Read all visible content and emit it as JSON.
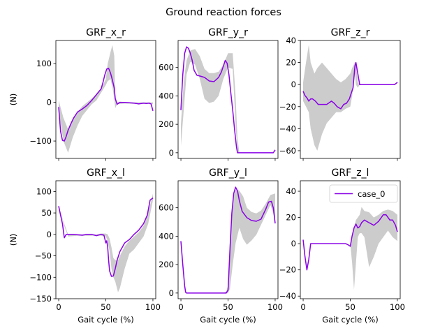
{
  "figure_title": "Ground reaction forces",
  "ylabel": "(N)",
  "xlabel": "Gait cycle (%)",
  "colors": {
    "line": "#8a00e6",
    "band": "#cccccc"
  },
  "legend": {
    "label": "case_0",
    "location": "upper right"
  },
  "chart_data": [
    {
      "type": "line",
      "title": "GRF_x_r",
      "xlim": [
        -3,
        103
      ],
      "ylim": [
        -145,
        160
      ],
      "yticks": [
        -100,
        0,
        100
      ],
      "yticklabels": [
        "−100",
        "0",
        "100"
      ],
      "xticks": [
        0,
        50,
        100
      ],
      "show_xticklabels": false,
      "ylabel": "(N)",
      "xlabel": "",
      "series": [
        {
          "name": "case_0",
          "x": [
            0,
            2,
            4,
            6,
            8,
            10,
            13,
            16,
            20,
            25,
            30,
            35,
            40,
            45,
            47,
            49,
            51,
            53,
            55,
            57,
            59,
            60,
            62,
            65,
            70,
            75,
            80,
            85,
            90,
            93,
            96,
            98,
            100
          ],
          "y": [
            -12,
            -75,
            -98,
            -100,
            -88,
            -72,
            -55,
            -40,
            -25,
            -17,
            -8,
            5,
            20,
            35,
            52,
            72,
            86,
            88,
            76,
            58,
            37,
            10,
            -5,
            0,
            0,
            -1,
            -2,
            -4,
            -2,
            -3,
            -2,
            -4,
            -22
          ]
        }
      ],
      "band": {
        "x": [
          0,
          5,
          10,
          15,
          20,
          25,
          30,
          35,
          40,
          45,
          50,
          52,
          55,
          57,
          59,
          60,
          62,
          65,
          70,
          80,
          90,
          100
        ],
        "upper": [
          5,
          -40,
          -70,
          -40,
          -25,
          -10,
          0,
          10,
          20,
          35,
          60,
          100,
          130,
          148,
          120,
          10,
          0,
          2,
          1,
          0,
          0,
          0
        ],
        "lower": [
          -20,
          -100,
          -130,
          -90,
          -60,
          -35,
          -20,
          -5,
          5,
          25,
          45,
          55,
          60,
          40,
          10,
          -15,
          -5,
          -4,
          -3,
          -4,
          -4,
          -4
        ]
      }
    },
    {
      "type": "line",
      "title": "GRF_y_r",
      "xlim": [
        -3,
        103
      ],
      "ylim": [
        -40,
        790
      ],
      "yticks": [
        0,
        200,
        400,
        600
      ],
      "yticklabels": [
        "0",
        "200",
        "400",
        "600"
      ],
      "xticks": [
        0,
        50,
        100
      ],
      "show_xticklabels": false,
      "ylabel": "",
      "xlabel": "",
      "series": [
        {
          "name": "case_0",
          "x": [
            0,
            2,
            4,
            6,
            8,
            10,
            12,
            14,
            17,
            20,
            25,
            30,
            35,
            40,
            43,
            45,
            47,
            49,
            51,
            53,
            55,
            57,
            59,
            60,
            62,
            65,
            70,
            80,
            90,
            95,
            98,
            100
          ],
          "y": [
            300,
            550,
            700,
            745,
            735,
            700,
            650,
            580,
            545,
            540,
            530,
            505,
            500,
            530,
            570,
            610,
            650,
            630,
            550,
            420,
            300,
            160,
            40,
            0,
            0,
            0,
            0,
            0,
            0,
            0,
            0,
            20
          ]
        }
      ],
      "band": {
        "x": [
          0,
          3,
          6,
          10,
          15,
          20,
          25,
          30,
          35,
          40,
          45,
          50,
          55,
          58,
          60,
          62,
          65,
          70,
          80,
          90,
          100
        ],
        "upper": [
          200,
          500,
          650,
          720,
          730,
          680,
          590,
          560,
          560,
          570,
          620,
          700,
          700,
          400,
          100,
          0,
          0,
          0,
          0,
          0,
          0
        ],
        "lower": [
          50,
          300,
          550,
          640,
          620,
          520,
          380,
          350,
          360,
          400,
          520,
          600,
          590,
          200,
          0,
          0,
          0,
          0,
          0,
          0,
          0
        ]
      }
    },
    {
      "type": "line",
      "title": "GRF_z_r",
      "xlim": [
        -3,
        103
      ],
      "ylim": [
        -67,
        40
      ],
      "yticks": [
        -60,
        -40,
        -20,
        0,
        20,
        40
      ],
      "yticklabels": [
        "−60",
        "−40",
        "−20",
        "0",
        "20",
        "40"
      ],
      "xticks": [
        0,
        50,
        100
      ],
      "show_xticklabels": false,
      "ylabel": "",
      "xlabel": "",
      "series": [
        {
          "name": "case_0",
          "x": [
            0,
            2,
            4,
            6,
            8,
            10,
            13,
            16,
            20,
            25,
            30,
            33,
            36,
            40,
            43,
            46,
            49,
            51,
            53,
            55,
            56,
            58,
            60,
            65,
            70,
            80,
            90,
            95,
            97,
            100
          ],
          "y": [
            -6,
            -10,
            -12,
            -15,
            -13,
            -13,
            -15,
            -18,
            -18,
            -18,
            -15,
            -17,
            -20,
            -22,
            -18,
            -17,
            -13,
            -8,
            -3,
            17,
            20,
            10,
            0,
            0,
            0,
            0,
            0,
            0,
            0,
            2
          ]
        }
      ],
      "band": {
        "x": [
          0,
          3,
          6,
          8,
          12,
          15,
          20,
          25,
          30,
          35,
          40,
          45,
          50,
          52,
          55,
          56,
          58,
          60,
          70,
          80,
          90,
          100
        ],
        "upper": [
          2,
          20,
          36,
          20,
          10,
          15,
          20,
          15,
          10,
          5,
          2,
          5,
          10,
          15,
          20,
          20,
          2,
          0,
          0,
          0,
          0,
          0
        ],
        "lower": [
          -15,
          -20,
          -25,
          -40,
          -55,
          -60,
          -45,
          -35,
          -30,
          -25,
          -25,
          -22,
          -20,
          -10,
          10,
          0,
          -3,
          0,
          0,
          0,
          0,
          0
        ]
      }
    },
    {
      "type": "line",
      "title": "GRF_x_l",
      "xlim": [
        -3,
        103
      ],
      "ylim": [
        -150,
        125
      ],
      "yticks": [
        -150,
        -100,
        -50,
        0,
        50,
        100
      ],
      "yticklabels": [
        "−150",
        "−100",
        "−50",
        "0",
        "50",
        "100"
      ],
      "xticks": [
        0,
        50,
        100
      ],
      "show_xticklabels": true,
      "ylabel": "(N)",
      "xlabel": "Gait cycle (%)",
      "series": [
        {
          "name": "case_0",
          "x": [
            0,
            2,
            4,
            6,
            8,
            10,
            15,
            20,
            25,
            30,
            35,
            40,
            45,
            48,
            50,
            51,
            52,
            53,
            54,
            56,
            58,
            60,
            62,
            65,
            70,
            75,
            80,
            85,
            90,
            94,
            97,
            100
          ],
          "y": [
            66,
            45,
            25,
            -8,
            0,
            0,
            0,
            -1,
            -2,
            0,
            0,
            -3,
            0,
            -2,
            -20,
            -15,
            -30,
            -60,
            -85,
            -98,
            -97,
            -80,
            -60,
            -40,
            -20,
            -12,
            0,
            10,
            25,
            45,
            80,
            85
          ]
        }
      ],
      "band": {
        "x": [
          0,
          5,
          10,
          20,
          30,
          40,
          45,
          50,
          52,
          54,
          56,
          58,
          60,
          63,
          65,
          70,
          75,
          80,
          85,
          90,
          95,
          100
        ],
        "upper": [
          65,
          30,
          0,
          0,
          0,
          0,
          2,
          2,
          0,
          -10,
          -30,
          -55,
          -60,
          -60,
          -50,
          -28,
          -15,
          -5,
          5,
          20,
          50,
          95
        ],
        "lower": [
          65,
          25,
          -5,
          -3,
          -3,
          -3,
          -3,
          -5,
          -15,
          -40,
          -80,
          -100,
          -110,
          -135,
          -125,
          -80,
          -45,
          -35,
          -20,
          -5,
          25,
          80
        ]
      }
    },
    {
      "type": "line",
      "title": "GRF_y_l",
      "xlim": [
        -3,
        103
      ],
      "ylim": [
        -40,
        790
      ],
      "yticks": [
        0,
        200,
        400,
        600
      ],
      "yticklabels": [
        "0",
        "200",
        "400",
        "600"
      ],
      "xticks": [
        0,
        50,
        100
      ],
      "show_xticklabels": true,
      "ylabel": "",
      "xlabel": "Gait cycle (%)",
      "series": [
        {
          "name": "case_0",
          "x": [
            0,
            2,
            4,
            5,
            6,
            10,
            20,
            30,
            40,
            45,
            48,
            50,
            52,
            54,
            56,
            58,
            60,
            62,
            65,
            70,
            75,
            80,
            85,
            90,
            93,
            96,
            98,
            100
          ],
          "y": [
            365,
            200,
            50,
            5,
            0,
            0,
            0,
            0,
            0,
            0,
            0,
            20,
            300,
            560,
            700,
            745,
            720,
            650,
            575,
            530,
            510,
            505,
            520,
            590,
            640,
            645,
            600,
            490
          ]
        }
      ],
      "band": {
        "x": [
          0,
          10,
          20,
          30,
          40,
          45,
          48,
          50,
          52,
          55,
          58,
          62,
          66,
          70,
          75,
          80,
          85,
          90,
          95,
          100
        ],
        "upper": [
          0,
          0,
          0,
          0,
          0,
          0,
          10,
          50,
          400,
          650,
          730,
          720,
          680,
          600,
          570,
          560,
          580,
          630,
          690,
          700
        ],
        "lower": [
          0,
          0,
          0,
          0,
          0,
          0,
          0,
          0,
          30,
          200,
          350,
          460,
          380,
          340,
          370,
          410,
          480,
          550,
          620,
          520
        ]
      }
    },
    {
      "type": "line",
      "title": "GRF_z_l",
      "xlim": [
        -3,
        103
      ],
      "ylim": [
        -42,
        48
      ],
      "yticks": [
        -40,
        -20,
        0,
        20,
        40
      ],
      "yticklabels": [
        "−40",
        "−20",
        "0",
        "20",
        "40"
      ],
      "xticks": [
        0,
        50,
        100
      ],
      "show_xticklabels": true,
      "ylabel": "",
      "xlabel": "Gait cycle (%)",
      "series": [
        {
          "name": "case_0",
          "x": [
            0,
            2,
            4,
            6,
            8,
            10,
            20,
            30,
            40,
            45,
            48,
            50,
            52,
            54,
            56,
            58,
            60,
            62,
            65,
            70,
            75,
            80,
            85,
            88,
            92,
            95,
            98,
            100
          ],
          "y": [
            3,
            -10,
            -20,
            -12,
            0,
            0,
            0,
            0,
            0,
            0,
            -1,
            -2,
            6,
            12,
            15,
            12,
            13,
            16,
            18,
            16,
            14,
            17,
            22,
            22,
            18,
            18,
            14,
            9
          ]
        }
      ],
      "band": {
        "x": [
          0,
          5,
          10,
          20,
          30,
          40,
          45,
          50,
          52,
          54,
          56,
          58,
          60,
          62,
          65,
          70,
          75,
          80,
          85,
          90,
          95,
          100
        ],
        "upper": [
          0,
          0,
          0,
          0,
          0,
          0,
          0,
          0,
          3,
          12,
          18,
          20,
          22,
          28,
          25,
          24,
          20,
          22,
          25,
          26,
          25,
          22
        ],
        "lower": [
          0,
          0,
          0,
          0,
          0,
          0,
          0,
          0,
          -15,
          -35,
          -15,
          5,
          8,
          8,
          5,
          -18,
          -10,
          0,
          5,
          10,
          5,
          2
        ]
      }
    }
  ]
}
